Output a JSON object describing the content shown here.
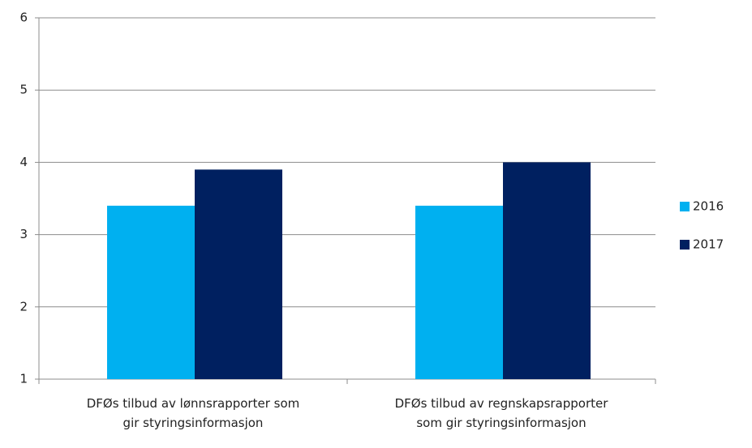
{
  "chart_data": {
    "type": "bar",
    "categories": [
      "DFØs tilbud av lønnsrapporter som gir styringsinformasjon",
      "DFØs tilbud av regnskapsrapporter som gir styringsinformasjon"
    ],
    "series": [
      {
        "name": "2016",
        "color": "#00b0f0",
        "values": [
          3.4,
          3.4
        ]
      },
      {
        "name": "2017",
        "color": "#002060",
        "values": [
          3.9,
          4.0
        ]
      }
    ],
    "ylim": [
      1,
      6
    ],
    "yticks": [
      1,
      2,
      3,
      4,
      5,
      6
    ],
    "grid": true,
    "legend": "right"
  }
}
